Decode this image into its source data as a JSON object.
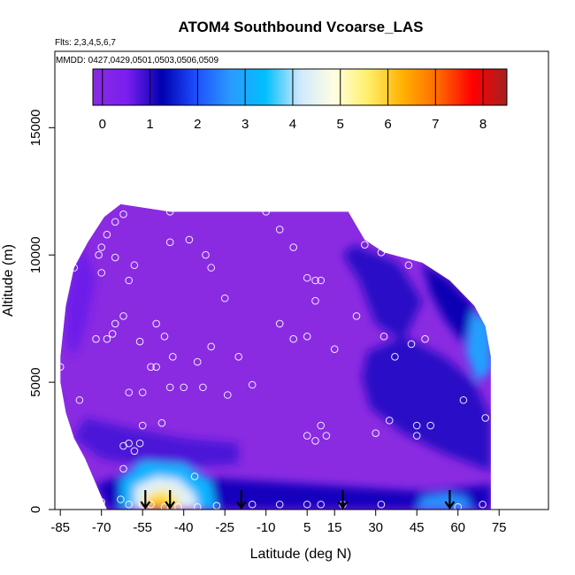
{
  "chart_data": {
    "type": "heatmap",
    "title": "ATOM4 Southbound Vcoarse_LAS",
    "flights_label": "Flts: 2,3,4,5,6,7",
    "dates_label": "MMDD: 0427,0429,0501,0503,0506,0509",
    "xlabel": "Latitude (deg N)",
    "ylabel": "Altitude (m)",
    "xlim": [
      -87,
      93
    ],
    "ylim": [
      0,
      18000
    ],
    "x_ticks": [
      -85,
      -70,
      -55,
      -40,
      -25,
      -10,
      5,
      15,
      30,
      45,
      60,
      75
    ],
    "y_ticks": [
      0,
      5000,
      10000,
      15000
    ],
    "colorbar_ticks": [
      0,
      1,
      2,
      3,
      4,
      5,
      6,
      7,
      8
    ],
    "colorbar_range": [
      -0.2,
      8.5
    ],
    "colormap": [
      "#8a2be2",
      "#7a1ef0",
      "#0000b0",
      "#1e50ff",
      "#2a9bff",
      "#00bfff",
      "#cfe8ff",
      "#ffffe0",
      "#ffee66",
      "#ffb000",
      "#ff6a00",
      "#ff0000",
      "#a52020"
    ],
    "domain_outline": [
      [
        -85,
        6000
      ],
      [
        -83,
        8000
      ],
      [
        -80,
        9500
      ],
      [
        -75,
        10500
      ],
      [
        -69,
        11500
      ],
      [
        -63,
        12000
      ],
      [
        -45,
        11700
      ],
      [
        20,
        11700
      ],
      [
        26,
        10600
      ],
      [
        33,
        10100
      ],
      [
        47,
        9700
      ],
      [
        57,
        9000
      ],
      [
        66,
        8000
      ],
      [
        70,
        7200
      ],
      [
        72,
        6000
      ],
      [
        72,
        0
      ],
      [
        -68,
        0
      ],
      [
        -72,
        1000
      ],
      [
        -76,
        2000
      ],
      [
        -80,
        2800
      ],
      [
        -83,
        3800
      ],
      [
        -85,
        5000
      ]
    ],
    "regions": [
      {
        "name": "background",
        "value": 0,
        "polygon": [
          [
            -85,
            6000
          ],
          [
            -83,
            8000
          ],
          [
            -80,
            9500
          ],
          [
            -75,
            10500
          ],
          [
            -69,
            11500
          ],
          [
            -63,
            12000
          ],
          [
            -45,
            11700
          ],
          [
            20,
            11700
          ],
          [
            26,
            10600
          ],
          [
            33,
            10100
          ],
          [
            47,
            9700
          ],
          [
            57,
            9000
          ],
          [
            66,
            8000
          ],
          [
            70,
            7200
          ],
          [
            72,
            6000
          ],
          [
            72,
            0
          ],
          [
            -68,
            0
          ],
          [
            -72,
            1000
          ],
          [
            -76,
            2000
          ],
          [
            -80,
            2800
          ],
          [
            -83,
            3800
          ],
          [
            -85,
            5000
          ]
        ]
      },
      {
        "name": "left-edge-band",
        "value": 0.6,
        "polygon": [
          [
            -83,
            8000
          ],
          [
            -80,
            9500
          ],
          [
            -76,
            10300
          ],
          [
            -72,
            9000
          ],
          [
            -76,
            7000
          ],
          [
            -80,
            6000
          ],
          [
            -83,
            6500
          ]
        ]
      },
      {
        "name": "lower-left-band",
        "value": 0.8,
        "polygon": [
          [
            -80,
            2800
          ],
          [
            -76,
            3600
          ],
          [
            -60,
            3200
          ],
          [
            -40,
            2800
          ],
          [
            -20,
            2600
          ],
          [
            -20,
            1800
          ],
          [
            -50,
            1600
          ],
          [
            -70,
            2000
          ]
        ]
      },
      {
        "name": "upper-right-blue",
        "value": 1.0,
        "polygon": [
          [
            22,
            10400
          ],
          [
            38,
            9700
          ],
          [
            47,
            8200
          ],
          [
            40,
            6600
          ],
          [
            30,
            7300
          ],
          [
            24,
            9000
          ],
          [
            18,
            10000
          ]
        ]
      },
      {
        "name": "right-ridge",
        "value": 1.2,
        "polygon": [
          [
            47,
            9700
          ],
          [
            57,
            9000
          ],
          [
            66,
            8000
          ],
          [
            62,
            6500
          ],
          [
            55,
            7500
          ],
          [
            50,
            8500
          ]
        ]
      },
      {
        "name": "right-blue-mass",
        "value": 1.0,
        "polygon": [
          [
            27,
            6200
          ],
          [
            40,
            6800
          ],
          [
            55,
            6000
          ],
          [
            66,
            5000
          ],
          [
            72,
            3600
          ],
          [
            72,
            1500
          ],
          [
            55,
            2200
          ],
          [
            40,
            3000
          ],
          [
            28,
            4000
          ],
          [
            25,
            5200
          ]
        ]
      },
      {
        "name": "right-edge-light",
        "value": 2.8,
        "polygon": [
          [
            65,
            7800
          ],
          [
            72,
            7300
          ],
          [
            72,
            5500
          ],
          [
            67,
            5000
          ],
          [
            63,
            6200
          ]
        ]
      },
      {
        "name": "surface-layer",
        "value": 1.1,
        "polygon": [
          [
            -72,
            1000
          ],
          [
            -60,
            1400
          ],
          [
            -40,
            1300
          ],
          [
            -10,
            1100
          ],
          [
            20,
            900
          ],
          [
            50,
            700
          ],
          [
            72,
            1000
          ],
          [
            72,
            0
          ],
          [
            -68,
            0
          ]
        ]
      },
      {
        "name": "plume-outer",
        "value": 3.2,
        "polygon": [
          [
            -63,
            0
          ],
          [
            -63,
            1200
          ],
          [
            -55,
            1900
          ],
          [
            -40,
            1800
          ],
          [
            -30,
            1100
          ],
          [
            -28,
            0
          ]
        ]
      },
      {
        "name": "plume-mid",
        "value": 4.4,
        "polygon": [
          [
            -58,
            0
          ],
          [
            -58,
            900
          ],
          [
            -50,
            1300
          ],
          [
            -42,
            1200
          ],
          [
            -36,
            600
          ],
          [
            -35,
            0
          ]
        ]
      },
      {
        "name": "plume-core",
        "value": 5.7,
        "polygon": [
          [
            -55,
            0
          ],
          [
            -54,
            500
          ],
          [
            -48,
            800
          ],
          [
            -43,
            600
          ],
          [
            -41,
            0
          ]
        ]
      },
      {
        "name": "plume-hot",
        "value": 6.3,
        "polygon": [
          [
            -53,
            0
          ],
          [
            -52,
            350
          ],
          [
            -48,
            450
          ],
          [
            -46,
            0
          ]
        ]
      },
      {
        "name": "right-surface-blue",
        "value": 2.6,
        "polygon": [
          [
            45,
            0
          ],
          [
            47,
            500
          ],
          [
            55,
            650
          ],
          [
            63,
            500
          ],
          [
            65,
            0
          ]
        ]
      }
    ],
    "sample_points": [
      [
        -85,
        5600
      ],
      [
        -80,
        9500
      ],
      [
        -78,
        4300
      ],
      [
        -72,
        11300
      ],
      [
        -70,
        10300
      ],
      [
        -71,
        10000
      ],
      [
        -70,
        9300
      ],
      [
        -68,
        10800
      ],
      [
        -65,
        11300
      ],
      [
        -62,
        11600
      ],
      [
        -65,
        9900
      ],
      [
        -58,
        9600
      ],
      [
        -60,
        9000
      ],
      [
        -45,
        10500
      ],
      [
        -38,
        10600
      ],
      [
        -32,
        10000
      ],
      [
        -30,
        9500
      ],
      [
        -25,
        8300
      ],
      [
        -45,
        11700
      ],
      [
        -10,
        11700
      ],
      [
        -5,
        11000
      ],
      [
        0,
        10300
      ],
      [
        5,
        9100
      ],
      [
        8,
        9000
      ],
      [
        10,
        9000
      ],
      [
        8,
        8200
      ],
      [
        23,
        11700
      ],
      [
        26,
        10400
      ],
      [
        32,
        10100
      ],
      [
        42,
        9600
      ],
      [
        55,
        9700
      ],
      [
        -62,
        7600
      ],
      [
        -65,
        7300
      ],
      [
        -72,
        6700
      ],
      [
        -68,
        6700
      ],
      [
        -66,
        6900
      ],
      [
        -56,
        6600
      ],
      [
        -50,
        7300
      ],
      [
        -47,
        6800
      ],
      [
        -44,
        6000
      ],
      [
        -50,
        5600
      ],
      [
        -52,
        5600
      ],
      [
        -45,
        4800
      ],
      [
        -35,
        5800
      ],
      [
        -30,
        6400
      ],
      [
        -20,
        6000
      ],
      [
        -5,
        7300
      ],
      [
        0,
        6700
      ],
      [
        5,
        6800
      ],
      [
        15,
        6300
      ],
      [
        23,
        7600
      ],
      [
        33,
        6800
      ],
      [
        37,
        6000
      ],
      [
        43,
        6500
      ],
      [
        48,
        6700
      ],
      [
        -60,
        4600
      ],
      [
        -55,
        4600
      ],
      [
        -40,
        4800
      ],
      [
        -33,
        4800
      ],
      [
        -24,
        4500
      ],
      [
        -15,
        4900
      ],
      [
        -55,
        3300
      ],
      [
        -48,
        3400
      ],
      [
        -62,
        2500
      ],
      [
        -60,
        2600
      ],
      [
        -56,
        2600
      ],
      [
        -58,
        2300
      ],
      [
        -62,
        1600
      ],
      [
        -36,
        1300
      ],
      [
        10,
        3300
      ],
      [
        5,
        2900
      ],
      [
        8,
        2700
      ],
      [
        12,
        2900
      ],
      [
        30,
        3000
      ],
      [
        35,
        3500
      ],
      [
        45,
        3300
      ],
      [
        50,
        3300
      ],
      [
        45,
        2900
      ],
      [
        62,
        4300
      ],
      [
        70,
        3600
      ],
      [
        -70,
        300
      ],
      [
        -63,
        400
      ],
      [
        -60,
        200
      ],
      [
        -55,
        200
      ],
      [
        -52,
        200
      ],
      [
        -47,
        100
      ],
      [
        -42,
        100
      ],
      [
        -35,
        100
      ],
      [
        -28,
        150
      ],
      [
        -15,
        200
      ],
      [
        -5,
        200
      ],
      [
        5,
        200
      ],
      [
        10,
        200
      ],
      [
        18,
        200
      ],
      [
        32,
        200
      ],
      [
        60,
        100
      ],
      [
        69,
        200
      ]
    ],
    "flight_markers": [
      -54,
      -45,
      -19,
      18,
      57
    ]
  }
}
